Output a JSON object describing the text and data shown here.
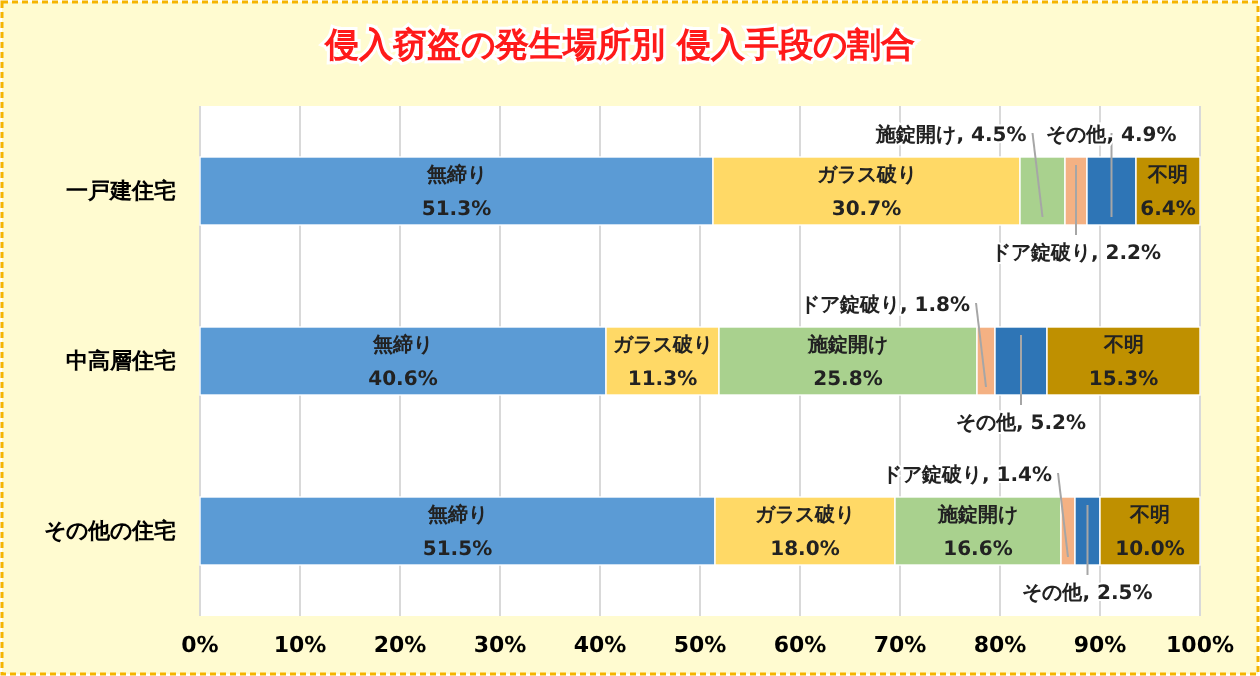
{
  "chart_data": {
    "type": "bar",
    "title": "侵入窃盗の発生場所別 侵入手段の割合",
    "orientation": "horizontal",
    "stacked": true,
    "categories": [
      "一戸建住宅",
      "中高層住宅",
      "その他の住宅"
    ],
    "series": [
      {
        "name": "無締り",
        "color": "#5b9bd5",
        "values": [
          51.3,
          40.6,
          51.5
        ],
        "value_labels": [
          "51.3%",
          "40.6%",
          "51.5%"
        ]
      },
      {
        "name": "ガラス破り",
        "color": "#ffd966",
        "values": [
          30.7,
          11.3,
          18.0
        ],
        "value_labels": [
          "30.7%",
          "11.3%",
          "18.0%"
        ]
      },
      {
        "name": "施錠開け",
        "color": "#a9d18e",
        "values": [
          4.5,
          25.8,
          16.6
        ],
        "value_labels": [
          "施錠開け, 4.5%",
          "25.8%",
          "16.6%"
        ]
      },
      {
        "color": "#f4b183",
        "values": [
          2.2,
          1.8,
          1.4
        ],
        "value_labels": [
          "ドア錠破り, 2.2%",
          "ドア錠破り, 1.8%",
          "ドア錠破り, 1.4%"
        ]
      },
      {
        "color": "#2e75b6",
        "values": [
          4.9,
          5.2,
          2.5
        ],
        "value_labels": [
          "その他, 4.9%",
          "その他, 5.2%",
          "その他, 2.5%"
        ]
      },
      {
        "name": "不明",
        "color": "#bf9000",
        "values": [
          6.4,
          15.3,
          10.0
        ],
        "value_labels": [
          "6.4%",
          "15.3%",
          "10.0%"
        ]
      }
    ],
    "xlim": [
      0,
      100
    ],
    "xticks": [
      {
        "value": 0,
        "label": "0%"
      },
      {
        "value": 10,
        "label": "10%"
      },
      {
        "value": 20,
        "label": "20%"
      },
      {
        "value": 30,
        "label": "30%"
      },
      {
        "value": 40,
        "label": "40%"
      },
      {
        "value": 50,
        "label": "50%"
      },
      {
        "value": 60,
        "label": "60%"
      },
      {
        "value": 70,
        "label": "70%"
      },
      {
        "value": 80,
        "label": "80%"
      },
      {
        "value": 90,
        "label": "90%"
      },
      {
        "value": 100,
        "label": "100%"
      }
    ],
    "grid": "x"
  }
}
